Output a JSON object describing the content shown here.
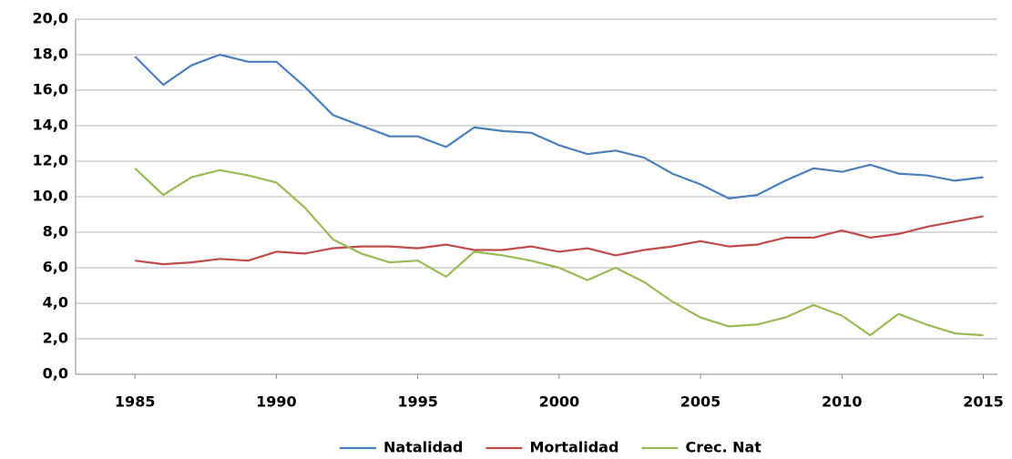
{
  "chart_data": {
    "type": "line",
    "x": [
      1985,
      1986,
      1987,
      1988,
      1989,
      1990,
      1991,
      1992,
      1993,
      1994,
      1995,
      1996,
      1997,
      1998,
      1999,
      2000,
      2001,
      2002,
      2003,
      2004,
      2005,
      2006,
      2007,
      2008,
      2009,
      2010,
      2011,
      2012,
      2013,
      2014,
      2015
    ],
    "series": [
      {
        "name": "Natalidad",
        "color": "#4a7ebb",
        "values": [
          17.9,
          16.3,
          17.4,
          18.0,
          17.6,
          17.6,
          16.2,
          14.6,
          14.0,
          13.4,
          13.4,
          12.8,
          13.9,
          13.7,
          13.6,
          12.9,
          12.4,
          12.6,
          12.2,
          11.3,
          10.7,
          9.9,
          10.1,
          10.9,
          11.6,
          11.4,
          11.8,
          11.3,
          11.2,
          10.9,
          11.1
        ]
      },
      {
        "name": "Mortalidad",
        "color": "#be4b48",
        "values": [
          6.4,
          6.2,
          6.3,
          6.5,
          6.4,
          6.9,
          6.8,
          7.1,
          7.2,
          7.2,
          7.1,
          7.3,
          7.0,
          7.0,
          7.2,
          6.9,
          7.1,
          6.7,
          7.0,
          7.2,
          7.5,
          7.2,
          7.3,
          7.7,
          7.7,
          8.1,
          7.7,
          7.9,
          8.3,
          8.6,
          8.9
        ]
      },
      {
        "name": "Crec. Nat",
        "color": "#98b954",
        "values": [
          11.6,
          10.1,
          11.1,
          11.5,
          11.2,
          10.8,
          9.4,
          7.6,
          6.8,
          6.3,
          6.4,
          5.5,
          6.9,
          6.7,
          6.4,
          6.0,
          5.3,
          6.0,
          5.2,
          4.1,
          3.2,
          2.7,
          2.8,
          3.2,
          3.9,
          3.3,
          2.2,
          3.4,
          2.8,
          2.3,
          2.2
        ]
      }
    ],
    "xlim": [
      1982.9,
      2015.5
    ],
    "xticks": [
      1985,
      1990,
      1995,
      2000,
      2005,
      2010,
      2015
    ],
    "ylim": [
      0,
      20
    ],
    "yticks": [
      {
        "value": 0,
        "label": "0,0"
      },
      {
        "value": 2,
        "label": "2,0"
      },
      {
        "value": 4,
        "label": "4,0"
      },
      {
        "value": 6,
        "label": "6,0"
      },
      {
        "value": 8,
        "label": "8,0"
      },
      {
        "value": 10,
        "label": "10,0"
      },
      {
        "value": 12,
        "label": "12,0"
      },
      {
        "value": 14,
        "label": "14,0"
      },
      {
        "value": 16,
        "label": "16,0"
      },
      {
        "value": 18,
        "label": "18,0"
      },
      {
        "value": 20,
        "label": "20,0"
      }
    ],
    "grid": true,
    "legend": "bottom"
  }
}
